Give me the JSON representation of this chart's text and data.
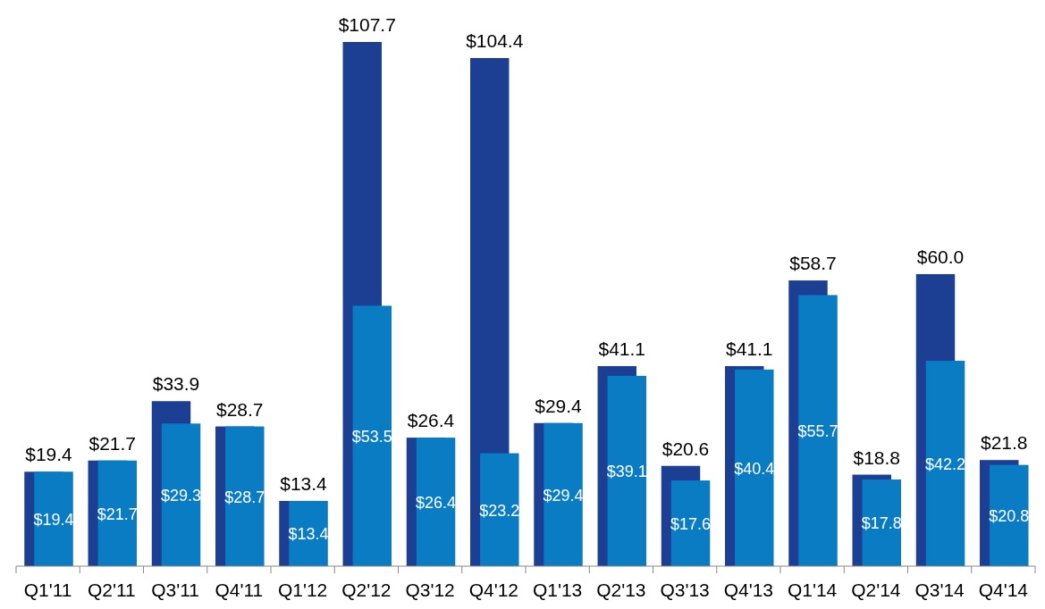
{
  "chart_data": {
    "type": "bar",
    "categories": [
      "Q1'11",
      "Q2'11",
      "Q3'11",
      "Q4'11",
      "Q1'12",
      "Q2'12",
      "Q3'12",
      "Q4'12",
      "Q1'13",
      "Q2'13",
      "Q3'13",
      "Q4'13",
      "Q1'14",
      "Q2'14",
      "Q3'14",
      "Q4'14"
    ],
    "series": [
      {
        "color": "#1c3f94",
        "values": [
          19.4,
          21.7,
          33.9,
          28.7,
          13.4,
          107.7,
          26.4,
          104.4,
          29.4,
          41.1,
          20.6,
          41.1,
          58.7,
          18.8,
          60.0,
          21.8
        ],
        "value_labels": [
          "$19.4",
          "$21.7",
          "$33.9",
          "$28.7",
          "$13.4",
          "$107.7",
          "$26.4",
          "$104.4",
          "$29.4",
          "$41.1",
          "$20.6",
          "$41.1",
          "$58.7",
          "$18.8",
          "$60.0",
          "$21.8"
        ]
      },
      {
        "color": "#0a7cc4",
        "values": [
          19.4,
          21.7,
          29.3,
          28.7,
          13.4,
          53.5,
          26.4,
          23.2,
          29.4,
          39.1,
          17.6,
          40.4,
          55.7,
          17.8,
          42.2,
          20.8
        ],
        "value_labels": [
          "$19.4",
          "$21.7",
          "$29.3",
          "$28.7",
          "$13.4",
          "$53.5",
          "$26.4",
          "$23.2",
          "$29.4",
          "$39.1",
          "$17.6",
          "$40.4",
          "$55.7",
          "$17.8",
          "$42.2",
          "$20.8"
        ]
      }
    ]
  }
}
